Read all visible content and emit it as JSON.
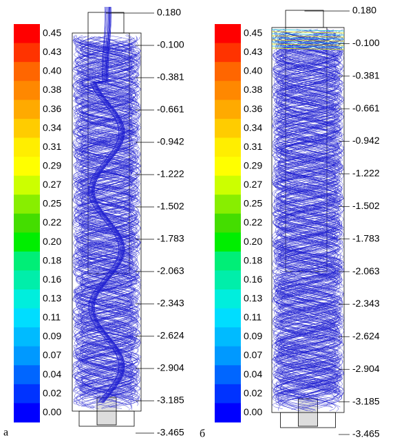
{
  "panels": [
    {
      "label": "а",
      "colorbar": [
        "0.45",
        "0.43",
        "0.40",
        "0.38",
        "0.36",
        "0.34",
        "0.31",
        "0.29",
        "0.27",
        "0.25",
        "0.22",
        "0.20",
        "0.18",
        "0.16",
        "0.13",
        "0.11",
        "0.09",
        "0.07",
        "0.04",
        "0.02",
        "0.00"
      ],
      "axis": [
        "0.180",
        "-0.100",
        "-0.381",
        "-0.661",
        "-0.942",
        "-1.222",
        "-1.502",
        "-1.783",
        "-2.063",
        "-2.343",
        "-2.624",
        "-2.904",
        "-3.185",
        "-3.465"
      ]
    },
    {
      "label": "б",
      "colorbar": [
        "0.45",
        "0.43",
        "0.40",
        "0.38",
        "0.36",
        "0.34",
        "0.31",
        "0.29",
        "0.27",
        "0.25",
        "0.22",
        "0.20",
        "0.18",
        "0.16",
        "0.13",
        "0.11",
        "0.09",
        "0.07",
        "0.04",
        "0.02",
        "0.00"
      ],
      "axis": [
        "0.180",
        "-0.100",
        "-0.381",
        "-0.661",
        "-0.942",
        "-1.222",
        "-1.502",
        "-1.783",
        "-2.063",
        "-2.343",
        "-2.624",
        "-2.904",
        "-3.185",
        "-3.465"
      ]
    }
  ]
}
